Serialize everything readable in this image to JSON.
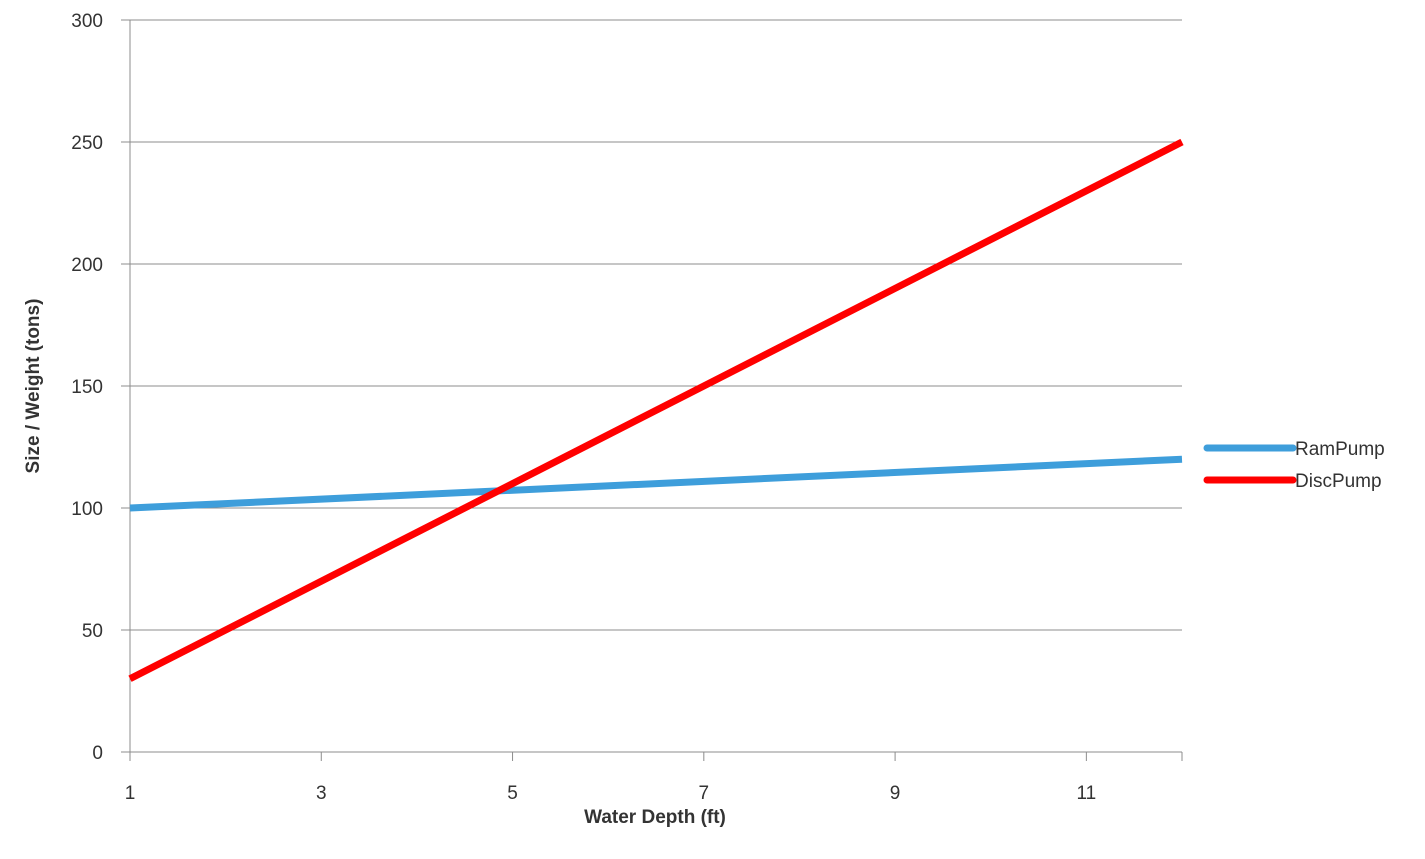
{
  "chart_data": {
    "type": "line",
    "title": "",
    "xlabel": "Water Depth (ft)",
    "ylabel": "Size / Weight (tons)",
    "xlim": [
      1,
      12
    ],
    "ylim": [
      0,
      300
    ],
    "x_ticks": [
      1,
      3,
      5,
      7,
      9,
      11
    ],
    "y_ticks": [
      0,
      50,
      100,
      150,
      200,
      250,
      300
    ],
    "grid": "horizontal",
    "legend_position": "right",
    "series": [
      {
        "name": "RamPump",
        "color": "#3E9EDB",
        "points": [
          [
            1,
            100
          ],
          [
            12,
            120
          ]
        ]
      },
      {
        "name": "DiscPump",
        "color": "#FF0000",
        "points": [
          [
            1,
            30
          ],
          [
            12,
            250
          ]
        ]
      }
    ]
  }
}
